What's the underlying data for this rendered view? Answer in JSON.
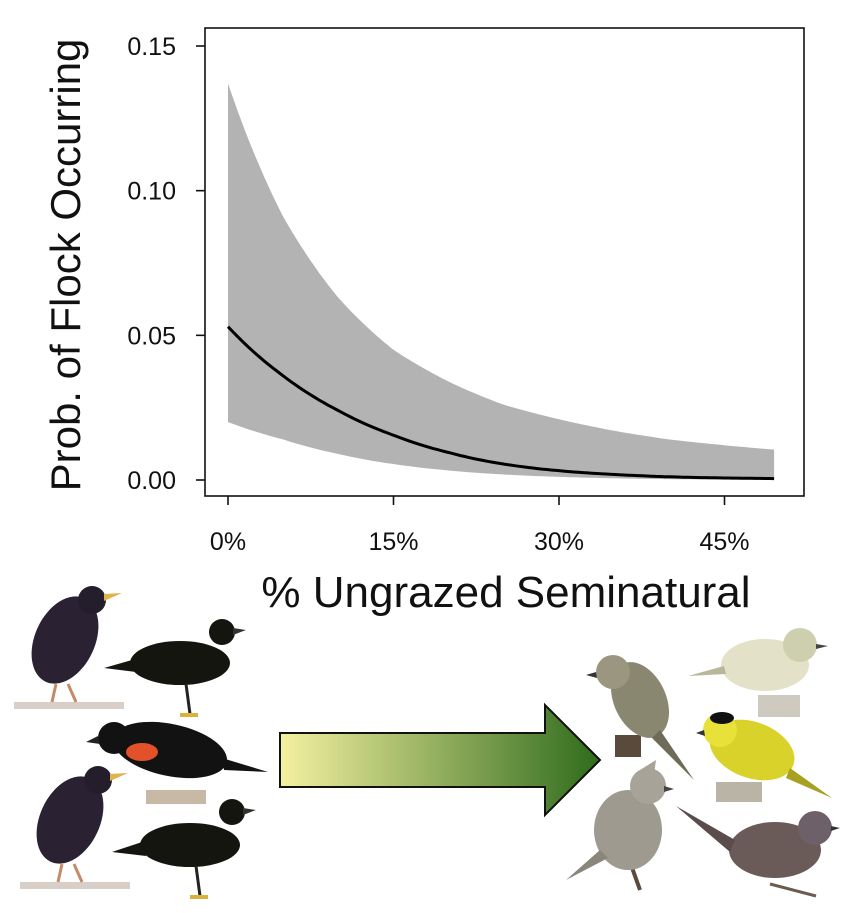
{
  "chart_data": {
    "type": "line",
    "title": "",
    "xlabel": "% Ungrazed Seminatural",
    "ylabel": "Prob. of Flock Occurring",
    "xlim": [
      0,
      50
    ],
    "ylim": [
      0,
      0.15
    ],
    "x_ticks": [
      0,
      15,
      30,
      45
    ],
    "x_tick_labels": [
      "0%",
      "15%",
      "30%",
      "45%"
    ],
    "y_ticks": [
      0,
      0.05,
      0.1,
      0.15
    ],
    "y_tick_labels": [
      "0.00",
      "0.05",
      "0.10",
      "0.15"
    ],
    "grid": false,
    "series": [
      {
        "x": [
          0,
          5,
          10,
          15,
          20,
          25,
          30,
          35,
          40,
          45,
          49.5
        ],
        "values": [
          0.053,
          0.036,
          0.024,
          0.0155,
          0.0095,
          0.0055,
          0.0032,
          0.0019,
          0.0011,
          0.0007,
          0.0005
        ]
      }
    ],
    "confidence_band": {
      "x": [
        0,
        5,
        10,
        15,
        20,
        25,
        30,
        35,
        40,
        45,
        49.5
      ],
      "lower": [
        0.02,
        0.014,
        0.009,
        0.0055,
        0.0033,
        0.0019,
        0.0011,
        0.0006,
        0.0003,
        0.00015,
        0.0001
      ],
      "upper": [
        0.137,
        0.091,
        0.063,
        0.045,
        0.034,
        0.026,
        0.021,
        0.017,
        0.014,
        0.012,
        0.0105
      ]
    },
    "colors": {
      "line": "#000000",
      "band": "#b3b3b3"
    }
  },
  "illustration": {
    "left_group": [
      "starling",
      "grackle",
      "red-winged-blackbird",
      "starling",
      "grackle"
    ],
    "right_group": [
      "flycatcher",
      "vireo",
      "wilsons-warbler",
      "titmouse",
      "wrentit"
    ],
    "arrow_gradient": [
      "#f4f1a0",
      "#2f6b1c"
    ]
  }
}
